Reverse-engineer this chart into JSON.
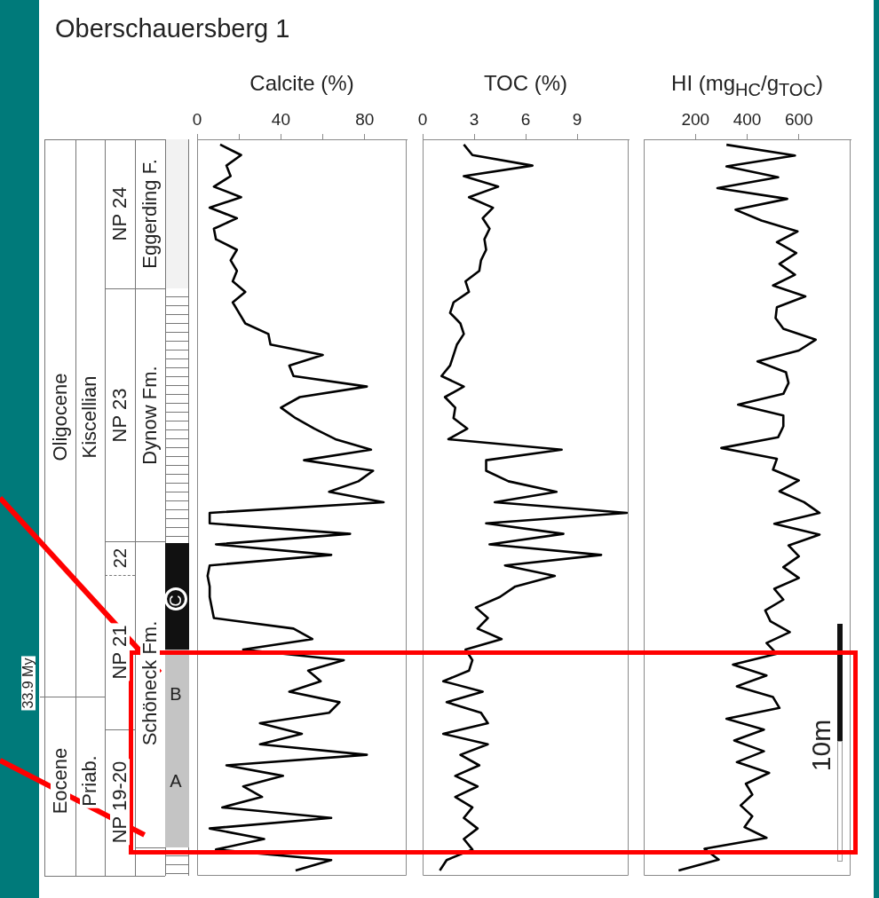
{
  "chart_data": [
    {
      "type": "other",
      "title": "Oberschauersberg 1",
      "annotations": [
        "Oligocene",
        "Eocene",
        "Kiscellian",
        "Priab.",
        "NP 24",
        "NP 23",
        "22",
        "NP 21",
        "NP 19-20",
        "Eggerding F.",
        "Dynow Fm.",
        "Schöneck Fm.",
        "33.9 My",
        "C",
        "B",
        "A",
        "10m"
      ]
    },
    {
      "type": "line",
      "orientation": "horizontal",
      "xlabel": "Calcite (%)",
      "xlim": [
        0,
        100
      ],
      "xticks": [
        0,
        {
          "value": 20,
          "label": null
        },
        40,
        {
          "value": 60,
          "label": null
        },
        80
      ],
      "color": "#000000",
      "categories": [
        null,
        null,
        null,
        null,
        null,
        null,
        null,
        null,
        null,
        null,
        null,
        null,
        null,
        null,
        null,
        null,
        null,
        null,
        null,
        null,
        null,
        null,
        null,
        null,
        null,
        null,
        null,
        null,
        null,
        null,
        null,
        null,
        null,
        null,
        null,
        null,
        null,
        null,
        null,
        null,
        null,
        null,
        null,
        null,
        null,
        null,
        null,
        null,
        null,
        null,
        null,
        null,
        null,
        null,
        null,
        null,
        null,
        null,
        null,
        null,
        null,
        null,
        null,
        null,
        null,
        null,
        null,
        null,
        null,
        null
      ],
      "values": [
        11,
        21,
        14,
        16,
        8,
        21,
        6,
        19,
        8,
        9,
        19,
        16,
        19,
        17,
        23,
        17,
        20,
        23,
        34,
        35,
        60,
        44,
        46,
        81,
        49,
        40,
        47,
        56,
        66,
        83,
        51,
        84,
        77,
        63,
        89,
        6,
        6,
        73,
        9,
        64,
        6,
        5,
        6,
        6,
        7,
        8,
        46,
        55,
        22,
        70,
        53,
        59,
        44,
        68,
        63,
        30,
        50,
        30,
        81,
        14,
        41,
        22,
        31,
        12,
        64,
        6,
        32,
        9,
        64,
        47
      ]
    },
    {
      "type": "line",
      "orientation": "horizontal",
      "xlabel": "TOC (%)",
      "xlim": [
        0,
        12
      ],
      "xticks": [
        0,
        3,
        6,
        9
      ],
      "color": "#000000",
      "categories": [
        null,
        null,
        null,
        null,
        null,
        null,
        null,
        null,
        null,
        null,
        null,
        null,
        null,
        null,
        null,
        null,
        null,
        null,
        null,
        null,
        null,
        null,
        null,
        null,
        null,
        null,
        null,
        null,
        null,
        null,
        null,
        null,
        null,
        null,
        null,
        null,
        null,
        null,
        null,
        null,
        null,
        null,
        null,
        null,
        null,
        null,
        null,
        null,
        null,
        null,
        null,
        null,
        null,
        null,
        null,
        null,
        null,
        null,
        null,
        null,
        null,
        null,
        null,
        null,
        null,
        null,
        null,
        null,
        null,
        null
      ],
      "values": [
        2.4,
        2.9,
        6.4,
        2.4,
        4.4,
        2.7,
        4.1,
        3.5,
        3.9,
        3.6,
        3.7,
        3.4,
        3.3,
        2.5,
        2.7,
        1.8,
        1.6,
        2.2,
        2.4,
        2.0,
        1.8,
        1.6,
        1.1,
        2.4,
        1.3,
        1.9,
        1.8,
        2.6,
        1.5,
        8.1,
        3.7,
        3.7,
        5.0,
        7.8,
        4.2,
        11.9,
        3.7,
        8.2,
        3.9,
        10.4,
        4.8,
        7.7,
        5.4,
        4.5,
        3.1,
        3.8,
        3.2,
        4.6,
        2.5,
        2.9,
        2.7,
        1.2,
        3.5,
        1.4,
        3.4,
        3.8,
        1.2,
        3.8,
        2.2,
        3.3,
        1.9,
        3.2,
        1.9,
        2.9,
        2.4,
        3.2,
        2.4,
        2.9,
        1.4,
        1.0
      ]
    },
    {
      "type": "line",
      "orientation": "horizontal",
      "xlabel": "HI (mg$_{HC}$/g$_{TOC}$)",
      "xlim": [
        0,
        800
      ],
      "xticks": [
        200,
        400,
        600
      ],
      "color": "#000000",
      "categories": [
        null,
        null,
        null,
        null,
        null,
        null,
        null,
        null,
        null,
        null,
        null,
        null,
        null,
        null,
        null,
        null,
        null,
        null,
        null,
        null,
        null,
        null,
        null,
        null,
        null,
        null,
        null,
        null,
        null,
        null,
        null,
        null,
        null,
        null,
        null,
        null,
        null,
        null,
        null,
        null,
        null,
        null,
        null,
        null,
        null,
        null,
        null,
        null,
        null,
        null,
        null,
        null,
        null,
        null,
        null,
        null,
        null,
        null,
        null,
        null,
        null,
        null,
        null,
        null,
        null,
        null,
        null,
        null
      ],
      "values": [
        320,
        585,
        320,
        520,
        285,
        555,
        355,
        455,
        595,
        515,
        590,
        525,
        585,
        500,
        625,
        515,
        510,
        540,
        665,
        600,
        440,
        550,
        560,
        540,
        365,
        540,
        540,
        520,
        300,
        515,
        500,
        600,
        525,
        620,
        680,
        505,
        680,
        560,
        600,
        540,
        600,
        505,
        540,
        470,
        490,
        565,
        475,
        515,
        345,
        475,
        360,
        500,
        525,
        320,
        465,
        350,
        465,
        360,
        485,
        395,
        420,
        375,
        420,
        390,
        475,
        235,
        290,
        135
      ]
    }
  ]
}
